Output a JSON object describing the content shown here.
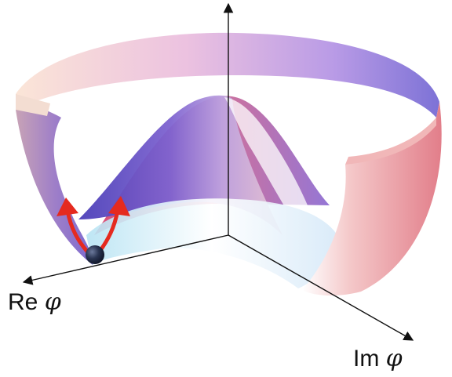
{
  "labels": {
    "re_axis": {
      "prefix": "Re",
      "symbol": "φ"
    },
    "im_axis": {
      "prefix": "Im",
      "symbol": "φ"
    }
  },
  "colors": {
    "arrow_red": "#e52a1f",
    "ball": "#1f2a44",
    "surface_peach": "#f7d6cf",
    "surface_pink": "#e87b9a",
    "surface_violet": "#7d72d6",
    "axis": "#111111"
  }
}
